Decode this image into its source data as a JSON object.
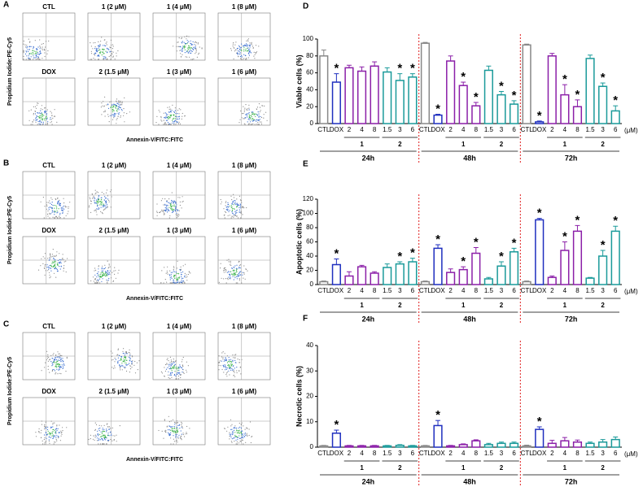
{
  "panels": [
    {
      "letter": "A",
      "y_label": "Propidium Iodide:PE-Cy5",
      "x_label": "Annexin-V/FITC:FITC",
      "plots": [
        "CTL",
        "1 (2 μM)",
        "1 (4 μM)",
        "1 (8 μM)",
        "DOX",
        "2 (1.5 μM)",
        "1 (3 μM)",
        "1 (6 μM)"
      ]
    },
    {
      "letter": "B",
      "y_label": "Propidium Iodide:PE-Cy5",
      "x_label": "Annexin-V/FITC:FITC",
      "plots": [
        "CTL",
        "1 (2 μM)",
        "1 (4 μM)",
        "1 (8 μM)",
        "DOX",
        "2 (1.5 μM)",
        "1 (3 μM)",
        "1 (6 μM)"
      ]
    },
    {
      "letter": "C",
      "y_label": "Propidium Iodide:PE-Cy5",
      "x_label": "Annexin-V/FITC:FITC",
      "plots": [
        "CTL",
        "1 (2 μM)",
        "1 (4 μM)",
        "1 (8 μM)",
        "DOX",
        "2 (1.5 μM)",
        "1 (3 μM)",
        "1 (6 μM)"
      ]
    }
  ],
  "chart_data": [
    {
      "type": "bar",
      "panel": "D",
      "y_label": "Viable cells (%)",
      "categories": [
        "CTL",
        "DOX",
        "2",
        "4",
        "8",
        "1.5",
        "3",
        "6",
        "CTL",
        "DOX",
        "2",
        "4",
        "8",
        "1.5",
        "3",
        "6",
        "CTL",
        "DOX",
        "2",
        "4",
        "8",
        "1.5",
        "3",
        "6"
      ],
      "values": [
        80,
        49,
        66,
        62,
        68,
        61,
        51,
        55,
        95,
        10,
        74,
        45,
        21,
        63,
        34,
        23,
        93,
        2,
        80,
        34,
        20,
        77,
        44,
        15
      ],
      "errors": [
        7,
        10,
        3,
        5,
        5,
        5,
        8,
        4,
        1,
        1,
        6,
        4,
        4,
        5,
        4,
        4,
        1,
        1,
        3,
        12,
        8,
        4,
        4,
        6
      ],
      "colors": [
        "#888888",
        "#1f2fbf",
        "#8b1fa8",
        "#8b1fa8",
        "#8b1fa8",
        "#1a9a9a",
        "#1a9a9a",
        "#1a9a9a",
        "#888888",
        "#1f2fbf",
        "#8b1fa8",
        "#8b1fa8",
        "#8b1fa8",
        "#1a9a9a",
        "#1a9a9a",
        "#1a9a9a",
        "#888888",
        "#1f2fbf",
        "#8b1fa8",
        "#8b1fa8",
        "#8b1fa8",
        "#1a9a9a",
        "#1a9a9a",
        "#1a9a9a"
      ],
      "sig_label": "*",
      "significant": [
        1,
        6,
        7,
        9,
        11,
        12,
        14,
        15,
        17,
        19,
        20,
        22,
        23
      ],
      "compound_labels": [
        "1",
        "2",
        "1",
        "2",
        "1",
        "2"
      ],
      "time_labels": [
        "24h",
        "48h",
        "72h"
      ],
      "unit_label": "(μM)",
      "ylim": [
        0,
        100
      ],
      "yticks": [
        0,
        20,
        40,
        60,
        80,
        100
      ]
    },
    {
      "type": "bar",
      "panel": "E",
      "y_label": "Apoptotic cells (%)",
      "categories": [
        "CTL",
        "DOX",
        "2",
        "4",
        "8",
        "1.5",
        "3",
        "6",
        "CTL",
        "DOX",
        "2",
        "4",
        "8",
        "1.5",
        "3",
        "6",
        "CTL",
        "DOX",
        "2",
        "4",
        "8",
        "1.5",
        "3",
        "6"
      ],
      "values": [
        4,
        28,
        12,
        25,
        16,
        24,
        29,
        32,
        4,
        51,
        17,
        21,
        44,
        8,
        26,
        46,
        4,
        91,
        10,
        48,
        75,
        9,
        40,
        75
      ],
      "errors": [
        1,
        8,
        6,
        2,
        2,
        5,
        3,
        5,
        1,
        5,
        5,
        4,
        8,
        2,
        6,
        5,
        1,
        2,
        2,
        12,
        8,
        1,
        8,
        7
      ],
      "colors": [
        "#888888",
        "#1f2fbf",
        "#8b1fa8",
        "#8b1fa8",
        "#8b1fa8",
        "#1a9a9a",
        "#1a9a9a",
        "#1a9a9a",
        "#888888",
        "#1f2fbf",
        "#8b1fa8",
        "#8b1fa8",
        "#8b1fa8",
        "#1a9a9a",
        "#1a9a9a",
        "#1a9a9a",
        "#888888",
        "#1f2fbf",
        "#8b1fa8",
        "#8b1fa8",
        "#8b1fa8",
        "#1a9a9a",
        "#1a9a9a",
        "#1a9a9a"
      ],
      "sig_label": "*",
      "significant": [
        1,
        6,
        7,
        9,
        11,
        12,
        14,
        15,
        17,
        19,
        20,
        22,
        23
      ],
      "compound_labels": [
        "1",
        "2",
        "1",
        "2",
        "1",
        "2"
      ],
      "time_labels": [
        "24h",
        "48h",
        "72h"
      ],
      "unit_label": "(μM)",
      "ylim": [
        0,
        120
      ],
      "yticks": [
        0,
        20,
        40,
        60,
        80,
        100,
        120
      ]
    },
    {
      "type": "bar",
      "panel": "F",
      "y_label": "Necrotic cells (%)",
      "categories": [
        "CTL",
        "DOX",
        "2",
        "4",
        "8",
        "1.5",
        "3",
        "6",
        "CTL",
        "DOX",
        "2",
        "4",
        "8",
        "1.5",
        "3",
        "6",
        "CTL",
        "DOX",
        "2",
        "4",
        "8",
        "1.5",
        "3",
        "6"
      ],
      "values": [
        0.5,
        5.5,
        0.5,
        0.5,
        0.5,
        0.5,
        0.7,
        0.5,
        0.5,
        8.5,
        0.5,
        1,
        2.5,
        1,
        1.5,
        1.5,
        0.5,
        7,
        1.5,
        2.5,
        2,
        1.5,
        2,
        3
      ],
      "errors": [
        0.2,
        1.2,
        0.2,
        0.2,
        0.2,
        0.2,
        0.3,
        0.2,
        0.2,
        2,
        0.2,
        0.3,
        0.4,
        0.5,
        0.5,
        0.5,
        0.3,
        1,
        1.2,
        1.3,
        0.8,
        0.5,
        1,
        1
      ],
      "colors": [
        "#888888",
        "#1f2fbf",
        "#8b1fa8",
        "#8b1fa8",
        "#8b1fa8",
        "#1a9a9a",
        "#1a9a9a",
        "#1a9a9a",
        "#888888",
        "#1f2fbf",
        "#8b1fa8",
        "#8b1fa8",
        "#8b1fa8",
        "#1a9a9a",
        "#1a9a9a",
        "#1a9a9a",
        "#888888",
        "#1f2fbf",
        "#8b1fa8",
        "#8b1fa8",
        "#8b1fa8",
        "#1a9a9a",
        "#1a9a9a",
        "#1a9a9a"
      ],
      "sig_label": "*",
      "significant": [
        1,
        9,
        17
      ],
      "compound_labels": [
        "1",
        "2",
        "1",
        "2",
        "1",
        "2"
      ],
      "time_labels": [
        "24h",
        "48h",
        "72h"
      ],
      "unit_label": "(μM)",
      "ylim": [
        0,
        40
      ],
      "yticks": [
        0,
        10,
        20,
        30,
        40
      ]
    }
  ]
}
